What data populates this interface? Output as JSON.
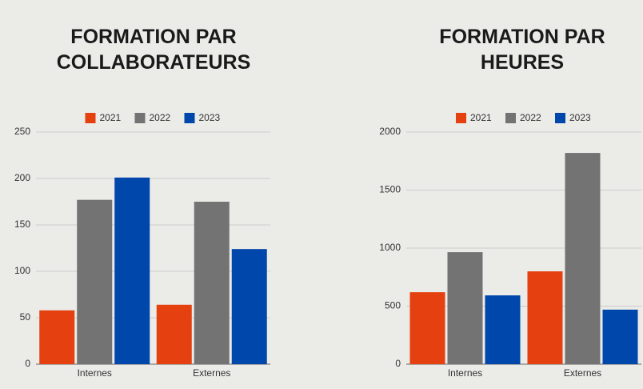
{
  "chart_data": [
    {
      "type": "bar",
      "title": "FORMATION PAR COLLABORATEURS",
      "categories": [
        "Internes",
        "Externes"
      ],
      "series": [
        {
          "name": "2021",
          "color": "#e5400f",
          "values": [
            58,
            64
          ]
        },
        {
          "name": "2022",
          "color": "#737373",
          "values": [
            177,
            175
          ]
        },
        {
          "name": "2023",
          "color": "#0047ab",
          "values": [
            201,
            124
          ]
        }
      ],
      "ylim": [
        0,
        250
      ],
      "yticks": [
        0,
        50,
        100,
        150,
        200,
        250
      ],
      "grid": true,
      "legend": "top"
    },
    {
      "type": "bar",
      "title": "FORMATION PAR HEURES",
      "categories": [
        "Internes",
        "Externes"
      ],
      "series": [
        {
          "name": "2021",
          "color": "#e5400f",
          "values": [
            620,
            800
          ]
        },
        {
          "name": "2022",
          "color": "#737373",
          "values": [
            965,
            1820
          ]
        },
        {
          "name": "2023",
          "color": "#0047ab",
          "values": [
            593,
            470
          ]
        }
      ],
      "ylim": [
        0,
        2000
      ],
      "yticks": [
        0,
        500,
        1000,
        1500,
        2000
      ],
      "grid": true,
      "legend": "top"
    }
  ]
}
